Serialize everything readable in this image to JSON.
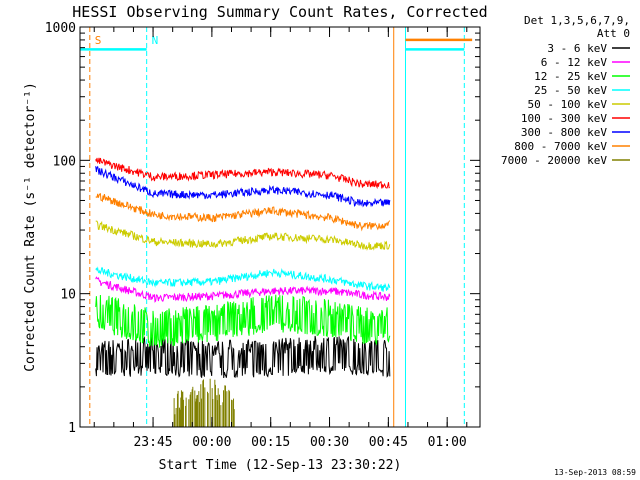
{
  "chart_data": {
    "type": "line",
    "title": "HESSI Observing Summary Count Rates, Corrected",
    "xlabel": "Start Time (12-Sep-13 23:30:22)",
    "ylabel": "Corrected Count Rate (s⁻¹ detector⁻¹)",
    "yscale": "log",
    "ylim": [
      1,
      1000
    ],
    "xlim_minutes_after_start": [
      -4,
      98
    ],
    "x_start": "12-Sep-13 23:30:22",
    "x_ticks": [
      "23:45",
      "00:00",
      "00:15",
      "00:30",
      "00:45",
      "01:00"
    ],
    "y_ticks": [
      "1",
      "10",
      "100",
      "1000"
    ],
    "legend_header": [
      "Det 1,3,5,6,7,9,",
      "Att 0"
    ],
    "timestamp": "13-Sep-2013 08:59",
    "series": [
      {
        "name": "3 - 6 keV",
        "color": "#000000",
        "x_minutes": [
          0,
          15,
          30,
          45,
          60,
          75
        ],
        "values": [
          3.2,
          3.4,
          3.2,
          3.3,
          3.5,
          3.3
        ],
        "style": "noisy"
      },
      {
        "name": "6 - 12 keV",
        "color": "#ff00ff",
        "x_minutes": [
          0,
          15,
          30,
          45,
          60,
          68,
          75
        ],
        "values": [
          12.5,
          9.3,
          9.6,
          10.5,
          10.5,
          9.8,
          9.4
        ]
      },
      {
        "name": "12 - 25 keV",
        "color": "#00ff00",
        "x_minutes": [
          0,
          15,
          30,
          45,
          60,
          68,
          75
        ],
        "values": [
          7.5,
          5.4,
          6.0,
          7.2,
          6.5,
          5.7,
          6.0
        ],
        "style": "noisy"
      },
      {
        "name": "25 - 50 keV",
        "color": "#00ffff",
        "x_minutes": [
          0,
          15,
          30,
          45,
          60,
          68,
          75
        ],
        "values": [
          15.0,
          12.0,
          12.3,
          14.5,
          12.8,
          11.5,
          11.0
        ]
      },
      {
        "name": "50 - 100 keV",
        "color": "#cccc00",
        "x_minutes": [
          0,
          15,
          30,
          45,
          60,
          68,
          75
        ],
        "values": [
          33.0,
          24.5,
          23.5,
          27.0,
          25.5,
          23.0,
          23.0
        ]
      },
      {
        "name": "100 - 300 keV",
        "color": "#ff0000",
        "x_minutes": [
          0,
          15,
          30,
          45,
          60,
          68,
          75
        ],
        "values": [
          100,
          75,
          78,
          82,
          77,
          66,
          66
        ]
      },
      {
        "name": "300 - 800 keV",
        "color": "#0000ff",
        "x_minutes": [
          0,
          15,
          30,
          45,
          60,
          68,
          75
        ],
        "values": [
          85,
          56,
          55,
          60,
          55,
          47,
          48
        ]
      },
      {
        "name": "800 - 7000 keV",
        "color": "#ff8000",
        "x_minutes": [
          0,
          15,
          30,
          45,
          60,
          68,
          75
        ],
        "values": [
          55,
          39,
          37,
          42,
          37,
          32,
          33
        ]
      },
      {
        "name": "7000 - 20000 keV",
        "color": "#808000",
        "x_minutes": [
          20,
          25,
          30,
          36
        ],
        "values": [
          1.5,
          1.8,
          2.0,
          1.5
        ],
        "style": "sparse"
      }
    ],
    "markers": [
      {
        "label": "S",
        "color": "#ff8000",
        "x_minutes": -1.5,
        "dashed": true
      },
      {
        "label": "N",
        "color": "#00ffff",
        "x_minutes": 13,
        "dashed": true
      },
      {
        "label": "",
        "color": "#ff8000",
        "x_minutes": 76,
        "dashed": false
      },
      {
        "label": "",
        "color": "#00ffff",
        "x_minutes": 79,
        "dashed": false
      },
      {
        "label": "",
        "color": "#00ffff",
        "x_minutes": 94,
        "dashed": true
      }
    ],
    "bars": [
      {
        "color": "#00ffff",
        "x_minutes": [
          -4,
          13
        ],
        "value": 680
      },
      {
        "color": "#ff8000",
        "x_minutes": [
          79,
          96
        ],
        "value": 800
      },
      {
        "color": "#00ffff",
        "x_minutes": [
          79,
          94
        ],
        "value": 680
      }
    ]
  }
}
